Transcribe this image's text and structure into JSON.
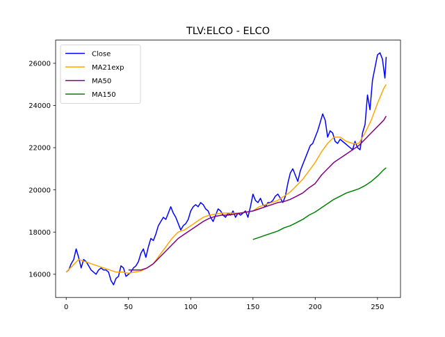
{
  "chart_data": {
    "type": "line",
    "title": "TLV:ELCO - ELCO",
    "xlabel": "",
    "ylabel": "",
    "xlim": [
      -8.5,
      268.5
    ],
    "ylim": [
      14900,
      27100
    ],
    "x_ticks": [
      0,
      50,
      100,
      150,
      200,
      250
    ],
    "x_tick_labels": [
      "0",
      "50",
      "100",
      "150",
      "200",
      "250"
    ],
    "y_ticks": [
      16000,
      18000,
      20000,
      22000,
      24000,
      26000
    ],
    "y_tick_labels": [
      "16000",
      "18000",
      "20000",
      "22000",
      "24000",
      "26000"
    ],
    "grid": false,
    "legend": {
      "placement": "top-left",
      "entries": [
        {
          "label": "Close",
          "color": "#0000ff"
        },
        {
          "label": "MA21exp",
          "color": "#ffa500"
        },
        {
          "label": "MA50",
          "color": "#800080"
        },
        {
          "label": "MA150",
          "color": "#008000"
        }
      ]
    },
    "series": [
      {
        "name": "Close",
        "color": "#0000ff",
        "x": [
          0,
          2,
          4,
          6,
          8,
          10,
          12,
          14,
          16,
          18,
          20,
          22,
          24,
          26,
          28,
          30,
          32,
          34,
          36,
          38,
          40,
          42,
          44,
          46,
          48,
          50,
          52,
          54,
          56,
          58,
          60,
          62,
          64,
          66,
          68,
          70,
          72,
          74,
          76,
          78,
          80,
          82,
          84,
          86,
          88,
          90,
          92,
          94,
          96,
          98,
          100,
          102,
          104,
          106,
          108,
          110,
          112,
          114,
          116,
          118,
          120,
          122,
          124,
          126,
          128,
          130,
          132,
          134,
          136,
          138,
          140,
          142,
          144,
          146,
          148,
          150,
          152,
          154,
          156,
          158,
          160,
          162,
          164,
          166,
          168,
          170,
          172,
          174,
          176,
          178,
          180,
          182,
          184,
          186,
          188,
          190,
          192,
          194,
          196,
          198,
          200,
          202,
          204,
          206,
          208,
          210,
          212,
          214,
          216,
          218,
          220,
          222,
          224,
          226,
          228,
          230,
          232,
          234,
          236,
          238,
          240,
          242,
          244,
          246,
          248,
          250,
          252,
          254,
          256,
          257
        ],
        "y": [
          16100,
          16200,
          16500,
          16700,
          17200,
          16800,
          16300,
          16700,
          16600,
          16400,
          16200,
          16100,
          16000,
          16200,
          16300,
          16200,
          16200,
          16100,
          15700,
          15500,
          15800,
          15900,
          16400,
          16300,
          15900,
          16000,
          16100,
          16300,
          16400,
          16600,
          17000,
          17200,
          16800,
          17300,
          17700,
          17600,
          17900,
          18300,
          18500,
          18700,
          18600,
          18900,
          19200,
          18900,
          18700,
          18400,
          18100,
          18300,
          18400,
          18600,
          19000,
          19200,
          19300,
          19200,
          19400,
          19300,
          19100,
          19000,
          18700,
          18500,
          18800,
          19100,
          19000,
          18800,
          18700,
          18900,
          18800,
          19000,
          18700,
          18900,
          18800,
          18900,
          19000,
          18700,
          19200,
          19800,
          19500,
          19400,
          19600,
          19300,
          19200,
          19400,
          19400,
          19500,
          19700,
          19800,
          19600,
          19400,
          19700,
          20300,
          20800,
          21000,
          20700,
          20400,
          20900,
          21200,
          21500,
          21800,
          22100,
          22200,
          22500,
          22800,
          23200,
          23600,
          23300,
          22500,
          22800,
          22700,
          22300,
          22200,
          22400,
          22300,
          22200,
          22100,
          22000,
          21900,
          22300,
          22000,
          21900,
          22700,
          23100,
          24500,
          23800,
          25200,
          25800,
          26400,
          26500,
          26200,
          25300,
          26300
        ]
      },
      {
        "name": "MA21exp",
        "color": "#ffa500",
        "x": [
          0,
          5,
          10,
          15,
          20,
          25,
          30,
          35,
          40,
          45,
          50,
          55,
          60,
          65,
          70,
          75,
          80,
          85,
          90,
          95,
          100,
          105,
          110,
          115,
          120,
          125,
          130,
          135,
          140,
          145,
          150,
          155,
          160,
          165,
          170,
          175,
          180,
          185,
          190,
          195,
          200,
          205,
          210,
          215,
          220,
          225,
          230,
          235,
          240,
          245,
          250,
          255,
          257
        ],
        "y": [
          16100,
          16400,
          16700,
          16600,
          16500,
          16400,
          16300,
          16200,
          16100,
          16100,
          16050,
          16100,
          16150,
          16300,
          16500,
          16900,
          17300,
          17700,
          18000,
          18100,
          18300,
          18500,
          18700,
          18800,
          18850,
          18900,
          18900,
          18900,
          18900,
          18950,
          19000,
          19200,
          19300,
          19400,
          19500,
          19700,
          19900,
          20200,
          20500,
          20900,
          21300,
          21800,
          22200,
          22500,
          22500,
          22300,
          22200,
          22200,
          22700,
          23300,
          24100,
          24800,
          25000
        ]
      },
      {
        "name": "MA50",
        "color": "#800080",
        "x": [
          50,
          55,
          60,
          65,
          70,
          75,
          80,
          85,
          90,
          95,
          100,
          105,
          110,
          115,
          120,
          125,
          130,
          135,
          140,
          145,
          150,
          155,
          160,
          165,
          170,
          175,
          180,
          185,
          190,
          195,
          200,
          205,
          210,
          215,
          220,
          225,
          230,
          235,
          240,
          245,
          250,
          255,
          257
        ],
        "y": [
          16200,
          16200,
          16200,
          16300,
          16500,
          16800,
          17100,
          17400,
          17700,
          17900,
          18100,
          18300,
          18500,
          18650,
          18750,
          18800,
          18800,
          18850,
          18900,
          18950,
          19000,
          19100,
          19200,
          19300,
          19400,
          19450,
          19550,
          19700,
          19850,
          20100,
          20300,
          20700,
          21000,
          21300,
          21500,
          21700,
          21900,
          22100,
          22400,
          22700,
          23000,
          23300,
          23500
        ]
      },
      {
        "name": "MA150",
        "color": "#008000",
        "x": [
          150,
          155,
          160,
          165,
          170,
          175,
          180,
          185,
          190,
          195,
          200,
          205,
          210,
          215,
          220,
          225,
          230,
          235,
          240,
          245,
          250,
          255,
          257
        ],
        "y": [
          17650,
          17750,
          17850,
          17950,
          18050,
          18200,
          18300,
          18450,
          18600,
          18800,
          18950,
          19150,
          19350,
          19550,
          19700,
          19850,
          19950,
          20050,
          20200,
          20400,
          20650,
          20950,
          21050
        ]
      }
    ]
  }
}
